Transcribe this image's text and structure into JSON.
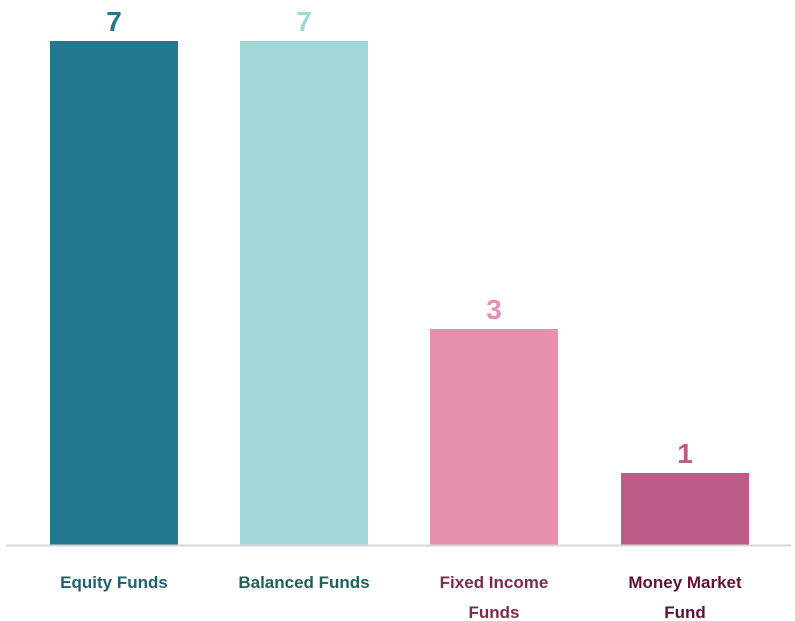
{
  "chart_data": {
    "type": "bar",
    "categories": [
      "Equity Funds",
      "Balanced Funds",
      "Fixed Income Funds",
      "Money Market Fund"
    ],
    "category_label_lines": [
      [
        "Equity Funds"
      ],
      [
        "Balanced Funds"
      ],
      [
        "Fixed Income",
        "Funds"
      ],
      [
        "Money Market",
        "Fund"
      ]
    ],
    "values": [
      7,
      7,
      3,
      1
    ],
    "value_labels": [
      "7",
      "7",
      "3",
      "1"
    ],
    "bar_colors": [
      "#23778e",
      "#9fd8d6",
      "#e590b0",
      "#bc5b86"
    ],
    "value_label_colors": [
      "#23778e",
      "#9fd8d6",
      "#e590b0",
      "#bc5b86"
    ],
    "category_label_colors": [
      "#1f5f70",
      "#1f5f5c",
      "#7b2b4c",
      "#5e1235"
    ],
    "axis_color": "#d6d6d6",
    "ylim": [
      0,
      7
    ],
    "grid": false,
    "legend": "none",
    "title": "",
    "xlabel": "",
    "ylabel": ""
  }
}
